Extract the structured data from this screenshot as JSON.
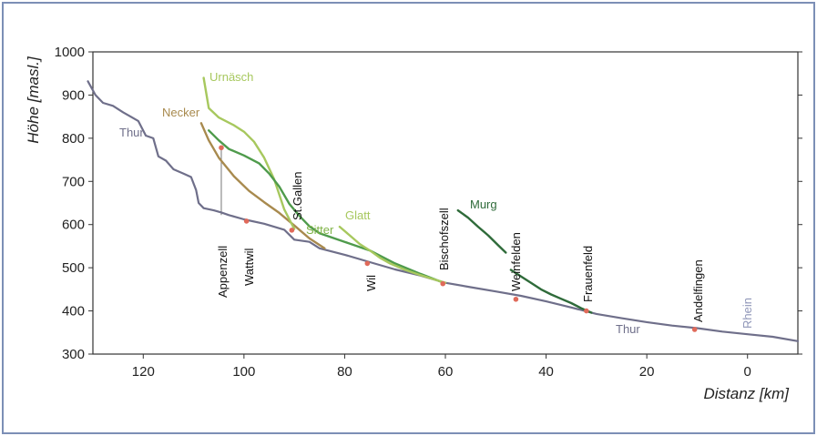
{
  "chart_data": {
    "type": "line",
    "xlabel": "Distanz [km]",
    "ylabel": "Höhe [masl.]",
    "xlim": [
      130,
      -10
    ],
    "ylim": [
      300,
      1000
    ],
    "x_ticks": [
      120,
      100,
      80,
      60,
      40,
      20,
      0
    ],
    "y_ticks": [
      300,
      400,
      500,
      600,
      700,
      800,
      900,
      1000
    ],
    "colors": {
      "Thur": "#6f6f8a",
      "Necker": "#a88a4e",
      "Urnäsch": "#a7c85e",
      "Sitter": "#4f9b4c",
      "Glatt": "#a7c85e",
      "Murg": "#2f6b3a",
      "marker": "#e06a5a"
    },
    "series": [
      {
        "name": "Thur",
        "x": [
          131,
          129.5,
          128,
          126,
          124,
          121,
          119.5,
          118,
          117,
          115.5,
          114,
          112,
          110.5,
          109.5,
          109,
          108,
          106,
          104.5,
          103,
          100,
          96,
          92,
          90,
          87,
          85,
          80,
          75,
          70,
          65,
          60,
          55,
          50,
          45,
          40,
          35,
          30,
          25,
          20,
          15,
          10,
          5,
          0,
          -5,
          -10
        ],
        "y": [
          932,
          900,
          882,
          875,
          860,
          840,
          806,
          800,
          758,
          748,
          728,
          718,
          710,
          680,
          650,
          638,
          633,
          628,
          622,
          612,
          602,
          588,
          565,
          560,
          545,
          530,
          513,
          496,
          482,
          465,
          455,
          445,
          435,
          422,
          408,
          393,
          383,
          374,
          366,
          360,
          352,
          346,
          340,
          330
        ]
      },
      {
        "name": "Necker",
        "x": [
          108.5,
          107,
          105,
          102,
          99,
          96,
          93,
          90,
          87,
          84
        ],
        "y": [
          835,
          795,
          755,
          712,
          678,
          652,
          627,
          598,
          568,
          545
        ]
      },
      {
        "name": "Urnäsch",
        "x": [
          108,
          107,
          105,
          102,
          100,
          98,
          96,
          94,
          92,
          90
        ],
        "y": [
          940,
          870,
          848,
          830,
          815,
          792,
          755,
          705,
          635,
          590
        ]
      },
      {
        "name": "Sitter",
        "x": [
          107,
          105,
          103,
          100,
          97,
          95,
          93,
          91,
          89,
          87,
          85,
          80,
          75,
          70,
          65,
          61
        ],
        "y": [
          818,
          795,
          775,
          760,
          742,
          718,
          688,
          648,
          620,
          596,
          580,
          560,
          540,
          510,
          486,
          468
        ]
      },
      {
        "name": "Glatt",
        "x": [
          81,
          79,
          77,
          75,
          73,
          71,
          68,
          65,
          62,
          60
        ],
        "y": [
          595,
          575,
          555,
          540,
          523,
          510,
          495,
          483,
          472,
          465
        ]
      },
      {
        "name": "Murg",
        "x": [
          57.5,
          55.5,
          53.5,
          51.5,
          49.5,
          48
        ],
        "y": [
          633,
          616,
          595,
          575,
          552,
          535
        ]
      },
      {
        "name": "Murg",
        "x": [
          47,
          45,
          43,
          41,
          39,
          37,
          35,
          33,
          31
        ],
        "y": [
          495,
          480,
          465,
          450,
          438,
          428,
          418,
          406,
          396
        ]
      }
    ],
    "points": [
      {
        "name": "Appenzell",
        "x": 104.5,
        "y": 778
      },
      {
        "name": "Wattwil",
        "x": 99.5,
        "y": 608
      },
      {
        "name": "St.Gallen",
        "x": 90.5,
        "y": 587
      },
      {
        "name": "Wil",
        "x": 75.5,
        "y": 510
      },
      {
        "name": "Bischofszell",
        "x": 60.5,
        "y": 463
      },
      {
        "name": "Weinfelden",
        "x": 46,
        "y": 427
      },
      {
        "name": "Frauenfeld",
        "x": 32,
        "y": 400
      },
      {
        "name": "Andelfingen",
        "x": 10.5,
        "y": 357
      }
    ],
    "series_labels": [
      "Thur",
      "Necker",
      "Urnäsch",
      "Sitter",
      "Glatt",
      "Murg",
      "Thur",
      "Rhein"
    ],
    "place_labels": [
      "Appenzell",
      "Wattwil",
      "St.Gallen",
      "Wil",
      "Bischofszell",
      "Weinfelden",
      "Frauenfeld",
      "Andelfingen"
    ]
  }
}
